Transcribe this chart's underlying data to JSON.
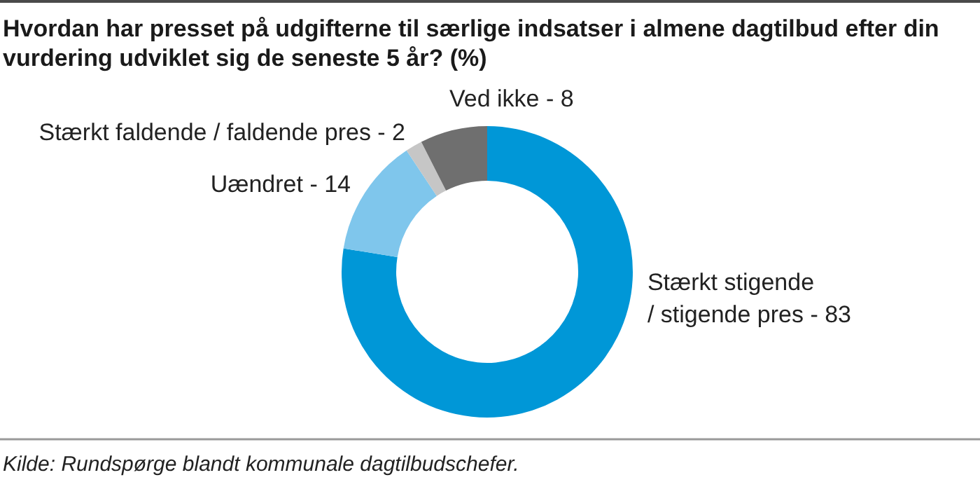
{
  "chart_data": {
    "type": "donut",
    "title": "Hvordan har presset på udgifterne til særlige indsatser i almene dagtilbud efter din vurdering udviklet sig de seneste 5 år? (%)",
    "categories": [
      "Stærkt stigende / stigende pres -",
      "Uændret -",
      "Stærkt faldende / faldende pres -",
      "Ved ikke -"
    ],
    "values": [
      83,
      14,
      2,
      8
    ],
    "data_labels": true,
    "colors": [
      "#0097d7",
      "#7fc6ec",
      "#c6c6c6",
      "#6f6f6f"
    ],
    "annotations": [
      "Kilde: Rundspørge blandt kommunale dagtilbudschefer."
    ]
  }
}
